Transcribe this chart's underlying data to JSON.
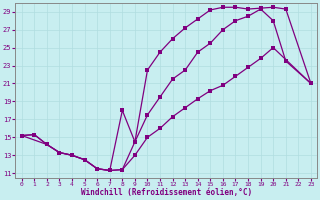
{
  "xlabel": "Windchill (Refroidissement éolien,°C)",
  "bg_color": "#c8eef0",
  "line_color": "#800080",
  "grid_color": "#b0dde0",
  "xlim": [
    -0.5,
    23.5
  ],
  "ylim": [
    10.5,
    30.0
  ],
  "xticks": [
    0,
    1,
    2,
    3,
    4,
    5,
    6,
    7,
    8,
    9,
    10,
    11,
    12,
    13,
    14,
    15,
    16,
    17,
    18,
    19,
    20,
    21,
    22,
    23
  ],
  "yticks": [
    11,
    13,
    15,
    17,
    19,
    21,
    23,
    25,
    27,
    29
  ],
  "curve1_x": [
    0,
    1,
    2,
    3,
    4,
    5,
    6,
    7,
    8,
    9,
    10,
    11,
    12,
    13,
    14,
    15,
    16,
    17,
    18,
    19,
    20,
    21,
    23
  ],
  "curve1_y": [
    15.2,
    15.3,
    14.2,
    13.3,
    13.0,
    12.5,
    11.5,
    11.3,
    11.4,
    14.5,
    22.5,
    24.5,
    26.0,
    27.2,
    28.2,
    29.2,
    29.5,
    29.5,
    29.3,
    29.4,
    29.5,
    29.3,
    21.0
  ],
  "curve2_x": [
    0,
    2,
    3,
    4,
    5,
    6,
    7,
    8,
    9,
    10,
    11,
    12,
    13,
    14,
    15,
    16,
    17,
    18,
    19,
    20,
    21,
    23
  ],
  "curve2_y": [
    15.2,
    14.2,
    13.3,
    13.0,
    12.5,
    11.5,
    11.3,
    18.0,
    14.5,
    17.5,
    19.5,
    21.5,
    22.5,
    24.5,
    25.5,
    27.0,
    28.0,
    28.5,
    29.3,
    28.0,
    23.5,
    21.0
  ],
  "curve3_x": [
    0,
    1,
    2,
    3,
    4,
    5,
    6,
    7,
    8,
    9,
    10,
    11,
    12,
    13,
    14,
    15,
    16,
    17,
    18,
    19,
    20,
    23
  ],
  "curve3_y": [
    15.2,
    15.3,
    14.2,
    13.3,
    13.0,
    12.5,
    11.5,
    11.3,
    11.4,
    13.0,
    15.0,
    16.0,
    17.3,
    18.3,
    19.3,
    20.2,
    20.8,
    21.8,
    22.8,
    23.8,
    25.0,
    21.0
  ]
}
